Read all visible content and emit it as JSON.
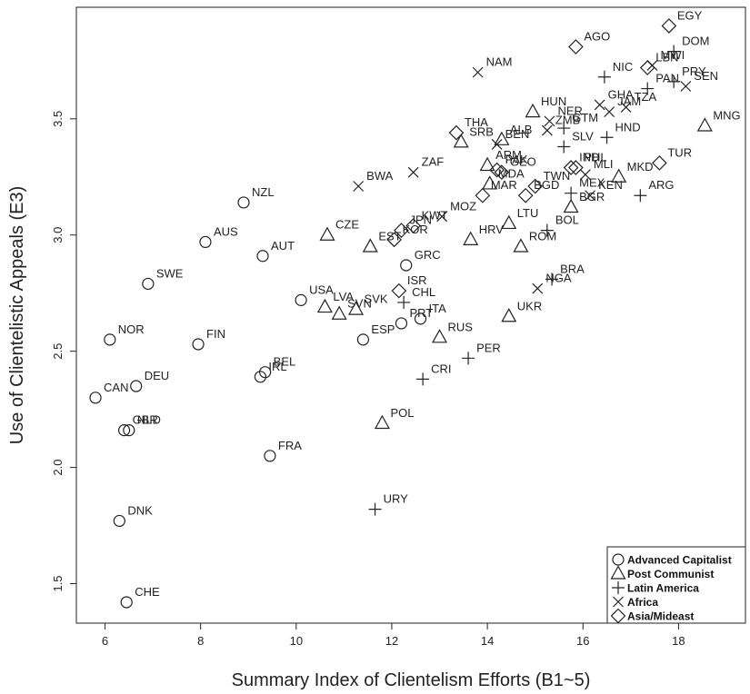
{
  "chart_data": {
    "type": "scatter",
    "xlabel": "Summary Index of Clientelism Efforts (B1~5)",
    "ylabel": "Use of Clientelistic Appeals (E3)",
    "xlim": [
      5.4,
      19.4
    ],
    "ylim": [
      1.33,
      3.98
    ],
    "xticks": [
      6,
      8,
      10,
      12,
      14,
      16,
      18
    ],
    "yticks": [
      1.5,
      2.0,
      2.5,
      3.0,
      3.5
    ],
    "grid": false,
    "legend_position": "bottom-right",
    "legend": [
      {
        "name": "Advanced Capitalist",
        "marker": "circle"
      },
      {
        "name": "Post Communist",
        "marker": "triangle"
      },
      {
        "name": "Latin America",
        "marker": "plus"
      },
      {
        "name": "Africa",
        "marker": "x"
      },
      {
        "name": "Asia/Mideast",
        "marker": "diamond"
      }
    ],
    "points": [
      {
        "label": "CHE",
        "x": 6.45,
        "y": 1.42,
        "group": "Advanced Capitalist"
      },
      {
        "label": "DNK",
        "x": 6.3,
        "y": 1.77,
        "group": "Advanced Capitalist"
      },
      {
        "label": "CAN",
        "x": 5.8,
        "y": 2.3,
        "group": "Advanced Capitalist"
      },
      {
        "label": "DEU",
        "x": 6.65,
        "y": 2.35,
        "group": "Advanced Capitalist"
      },
      {
        "label": "GBR",
        "x": 6.4,
        "y": 2.16,
        "group": "Advanced Capitalist"
      },
      {
        "label": "NLD",
        "x": 6.5,
        "y": 2.16,
        "group": "Advanced Capitalist"
      },
      {
        "label": "NOR",
        "x": 6.1,
        "y": 2.55,
        "group": "Advanced Capitalist"
      },
      {
        "label": "SWE",
        "x": 6.9,
        "y": 2.79,
        "group": "Advanced Capitalist"
      },
      {
        "label": "FIN",
        "x": 7.95,
        "y": 2.53,
        "group": "Advanced Capitalist"
      },
      {
        "label": "AUS",
        "x": 8.1,
        "y": 2.97,
        "group": "Advanced Capitalist"
      },
      {
        "label": "NZL",
        "x": 8.9,
        "y": 3.14,
        "group": "Advanced Capitalist"
      },
      {
        "label": "AUT",
        "x": 9.3,
        "y": 2.91,
        "group": "Advanced Capitalist"
      },
      {
        "label": "BEL",
        "x": 9.35,
        "y": 2.41,
        "group": "Advanced Capitalist"
      },
      {
        "label": "IRL",
        "x": 9.25,
        "y": 2.39,
        "group": "Advanced Capitalist"
      },
      {
        "label": "FRA",
        "x": 9.45,
        "y": 2.05,
        "group": "Advanced Capitalist"
      },
      {
        "label": "USA",
        "x": 10.1,
        "y": 2.72,
        "group": "Advanced Capitalist"
      },
      {
        "label": "ESP",
        "x": 11.4,
        "y": 2.55,
        "group": "Advanced Capitalist"
      },
      {
        "label": "PRT",
        "x": 12.2,
        "y": 2.62,
        "group": "Advanced Capitalist"
      },
      {
        "label": "ITA",
        "x": 12.6,
        "y": 2.64,
        "group": "Advanced Capitalist"
      },
      {
        "label": "GRC",
        "x": 12.3,
        "y": 2.87,
        "group": "Advanced Capitalist"
      },
      {
        "label": "POL",
        "x": 11.8,
        "y": 2.19,
        "group": "Post Communist"
      },
      {
        "label": "LVA",
        "x": 10.6,
        "y": 2.69,
        "group": "Post Communist"
      },
      {
        "label": "SVN",
        "x": 10.9,
        "y": 2.66,
        "group": "Post Communist"
      },
      {
        "label": "SVK",
        "x": 11.25,
        "y": 2.68,
        "group": "Post Communist"
      },
      {
        "label": "CZE",
        "x": 10.65,
        "y": 3.0,
        "group": "Post Communist"
      },
      {
        "label": "EST",
        "x": 11.55,
        "y": 2.95,
        "group": "Post Communist"
      },
      {
        "label": "RUS",
        "x": 13.0,
        "y": 2.56,
        "group": "Post Communist"
      },
      {
        "label": "HRV",
        "x": 13.65,
        "y": 2.98,
        "group": "Post Communist"
      },
      {
        "label": "UKR",
        "x": 14.45,
        "y": 2.65,
        "group": "Post Communist"
      },
      {
        "label": "LTU",
        "x": 14.45,
        "y": 3.05,
        "group": "Post Communist"
      },
      {
        "label": "ROM",
        "x": 14.7,
        "y": 2.95,
        "group": "Post Communist"
      },
      {
        "label": "BGR",
        "x": 15.75,
        "y": 3.12,
        "group": "Post Communist"
      },
      {
        "label": "MKD",
        "x": 16.75,
        "y": 3.25,
        "group": "Post Communist"
      },
      {
        "label": "MDA",
        "x": 14.05,
        "y": 3.22,
        "group": "Post Communist"
      },
      {
        "label": "ARM",
        "x": 14.0,
        "y": 3.3,
        "group": "Post Communist"
      },
      {
        "label": "SRB",
        "x": 13.45,
        "y": 3.4,
        "group": "Post Communist"
      },
      {
        "label": "ALB",
        "x": 14.3,
        "y": 3.41,
        "group": "Post Communist"
      },
      {
        "label": "HUN",
        "x": 14.95,
        "y": 3.53,
        "group": "Post Communist"
      },
      {
        "label": "MNG",
        "x": 18.55,
        "y": 3.47,
        "group": "Post Communist"
      },
      {
        "label": "URY",
        "x": 11.65,
        "y": 1.82,
        "group": "Latin America"
      },
      {
        "label": "CRI",
        "x": 12.65,
        "y": 2.38,
        "group": "Latin America"
      },
      {
        "label": "PER",
        "x": 13.6,
        "y": 2.47,
        "group": "Latin America"
      },
      {
        "label": "CHL",
        "x": 12.25,
        "y": 2.71,
        "group": "Latin America"
      },
      {
        "label": "BRA",
        "x": 15.35,
        "y": 2.81,
        "group": "Latin America"
      },
      {
        "label": "BOL",
        "x": 15.25,
        "y": 3.02,
        "group": "Latin America"
      },
      {
        "label": "MEX",
        "x": 15.75,
        "y": 3.18,
        "group": "Latin America"
      },
      {
        "label": "ARG",
        "x": 17.2,
        "y": 3.17,
        "group": "Latin America"
      },
      {
        "label": "SLV",
        "x": 15.6,
        "y": 3.38,
        "group": "Latin America"
      },
      {
        "label": "HND",
        "x": 16.5,
        "y": 3.42,
        "group": "Latin America"
      },
      {
        "label": "GTM",
        "x": 15.6,
        "y": 3.46,
        "group": "Latin America"
      },
      {
        "label": "NIC",
        "x": 16.45,
        "y": 3.68,
        "group": "Latin America"
      },
      {
        "label": "DOM",
        "x": 17.9,
        "y": 3.79,
        "group": "Latin America"
      },
      {
        "label": "PAN",
        "x": 17.35,
        "y": 3.63,
        "group": "Latin America"
      },
      {
        "label": "PRY",
        "x": 17.9,
        "y": 3.66,
        "group": "Latin America"
      },
      {
        "label": "NGA",
        "x": 15.05,
        "y": 2.77,
        "group": "Africa"
      },
      {
        "label": "KEN",
        "x": 16.15,
        "y": 3.17,
        "group": "Africa"
      },
      {
        "label": "MLI",
        "x": 16.05,
        "y": 3.26,
        "group": "Africa"
      },
      {
        "label": "MOZ",
        "x": 13.05,
        "y": 3.08,
        "group": "Africa"
      },
      {
        "label": "BWA",
        "x": 11.3,
        "y": 3.21,
        "group": "Africa"
      },
      {
        "label": "ZAF",
        "x": 12.45,
        "y": 3.27,
        "group": "Africa"
      },
      {
        "label": "BEN",
        "x": 14.2,
        "y": 3.39,
        "group": "Africa"
      },
      {
        "label": "ZMB",
        "x": 15.25,
        "y": 3.45,
        "group": "Africa"
      },
      {
        "label": "NER",
        "x": 15.3,
        "y": 3.49,
        "group": "Africa"
      },
      {
        "label": "GHA",
        "x": 16.35,
        "y": 3.56,
        "group": "Africa"
      },
      {
        "label": "JAM",
        "x": 16.55,
        "y": 3.53,
        "group": "Africa"
      },
      {
        "label": "TZA",
        "x": 16.9,
        "y": 3.55,
        "group": "Africa"
      },
      {
        "label": "SEN",
        "x": 18.15,
        "y": 3.64,
        "group": "Africa"
      },
      {
        "label": "NAM",
        "x": 13.8,
        "y": 3.7,
        "group": "Africa"
      },
      {
        "label": "MWI",
        "x": 17.45,
        "y": 3.73,
        "group": "Africa"
      },
      {
        "label": "ISR",
        "x": 12.15,
        "y": 2.76,
        "group": "Asia/Mideast"
      },
      {
        "label": "KOR",
        "x": 12.05,
        "y": 2.98,
        "group": "Asia/Mideast"
      },
      {
        "label": "JPN",
        "x": 12.2,
        "y": 3.02,
        "group": "Asia/Mideast"
      },
      {
        "label": "KWT",
        "x": 12.45,
        "y": 3.04,
        "group": "Asia/Mideast"
      },
      {
        "label": "MAR",
        "x": 13.9,
        "y": 3.17,
        "group": "Asia/Mideast"
      },
      {
        "label": "TWN",
        "x": 15.0,
        "y": 3.21,
        "group": "Asia/Mideast"
      },
      {
        "label": "BGD",
        "x": 14.8,
        "y": 3.17,
        "group": "Asia/Mideast"
      },
      {
        "label": "PHL",
        "x": 15.85,
        "y": 3.29,
        "group": "Asia/Mideast"
      },
      {
        "label": "IND",
        "x": 15.75,
        "y": 3.29,
        "group": "Asia/Mideast"
      },
      {
        "label": "PAK",
        "x": 14.2,
        "y": 3.28,
        "group": "Asia/Mideast"
      },
      {
        "label": "GEO",
        "x": 14.3,
        "y": 3.27,
        "group": "Asia/Mideast"
      },
      {
        "label": "THA",
        "x": 13.35,
        "y": 3.44,
        "group": "Asia/Mideast"
      },
      {
        "label": "TUR",
        "x": 17.6,
        "y": 3.31,
        "group": "Asia/Mideast"
      },
      {
        "label": "AGO",
        "x": 15.85,
        "y": 3.81,
        "group": "Asia/Mideast"
      },
      {
        "label": "EGY",
        "x": 17.8,
        "y": 3.9,
        "group": "Asia/Mideast"
      },
      {
        "label": "LBN",
        "x": 17.35,
        "y": 3.72,
        "group": "Asia/Mideast"
      }
    ]
  }
}
